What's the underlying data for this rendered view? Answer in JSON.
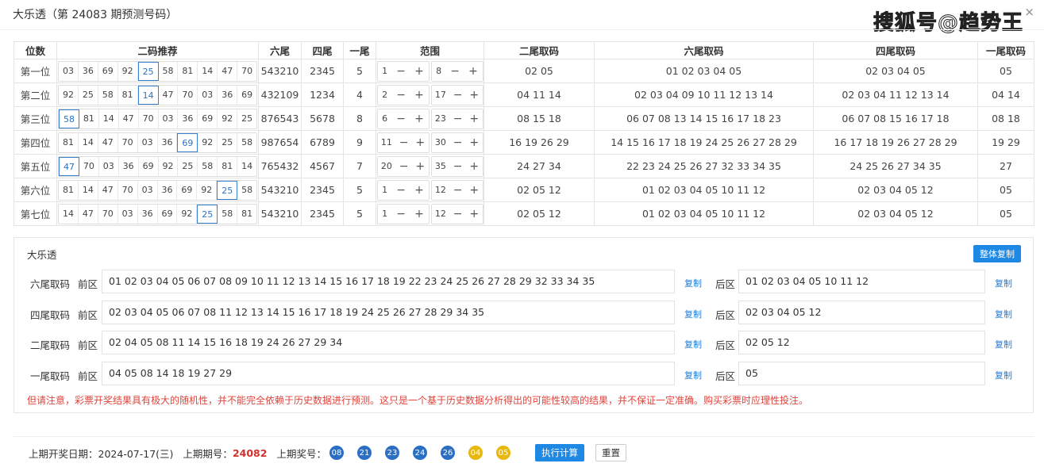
{
  "window": {
    "title": "大乐透（第 24083 期预测号码）",
    "watermark": "搜狐号@趋势王",
    "close": "×"
  },
  "table": {
    "headers": [
      "位数",
      "二码推荐",
      "六尾",
      "四尾",
      "一尾",
      "范围",
      "二尾取码",
      "六尾取码",
      "四尾取码",
      "一尾取码"
    ],
    "rows": [
      {
        "pos": "第一位",
        "codes": [
          "03",
          "36",
          "69",
          "92",
          "25",
          "58",
          "81",
          "14",
          "47",
          "70"
        ],
        "hl": 4,
        "six": "543210",
        "four": "2345",
        "one": "5",
        "min": "1",
        "max": "8",
        "t2": "02 05",
        "t6": "01 02 03 04 05",
        "t4": "02 03 04 05",
        "t1": "05"
      },
      {
        "pos": "第二位",
        "codes": [
          "92",
          "25",
          "58",
          "81",
          "14",
          "47",
          "70",
          "03",
          "36",
          "69"
        ],
        "hl": 4,
        "six": "432109",
        "four": "1234",
        "one": "4",
        "min": "2",
        "max": "17",
        "t2": "04 11 14",
        "t6": "02 03 04 09 10 11 12 13 14",
        "t4": "02 03 04 11 12 13 14",
        "t1": "04 14"
      },
      {
        "pos": "第三位",
        "codes": [
          "58",
          "81",
          "14",
          "47",
          "70",
          "03",
          "36",
          "69",
          "92",
          "25"
        ],
        "hl": 0,
        "six": "876543",
        "four": "5678",
        "one": "8",
        "min": "6",
        "max": "23",
        "t2": "08 15 18",
        "t6": "06 07 08 13 14 15 16 17 18 23",
        "t4": "06 07 08 15 16 17 18",
        "t1": "08 18"
      },
      {
        "pos": "第四位",
        "codes": [
          "81",
          "14",
          "47",
          "70",
          "03",
          "36",
          "69",
          "92",
          "25",
          "58"
        ],
        "hl": 6,
        "six": "987654",
        "four": "6789",
        "one": "9",
        "min": "11",
        "max": "30",
        "t2": "16 19 26 29",
        "t6": "14 15 16 17 18 19 24 25 26 27 28 29",
        "t4": "16 17 18 19 26 27 28 29",
        "t1": "19 29"
      },
      {
        "pos": "第五位",
        "codes": [
          "47",
          "70",
          "03",
          "36",
          "69",
          "92",
          "25",
          "58",
          "81",
          "14"
        ],
        "hl": 0,
        "six": "765432",
        "four": "4567",
        "one": "7",
        "min": "20",
        "max": "35",
        "t2": "24 27 34",
        "t6": "22 23 24 25 26 27 32 33 34 35",
        "t4": "24 25 26 27 34 35",
        "t1": "27"
      },
      {
        "pos": "第六位",
        "codes": [
          "81",
          "14",
          "47",
          "70",
          "03",
          "36",
          "69",
          "92",
          "25",
          "58"
        ],
        "hl": 8,
        "six": "543210",
        "four": "2345",
        "one": "5",
        "min": "1",
        "max": "12",
        "t2": "02 05 12",
        "t6": "01 02 03 04 05 10 11 12",
        "t4": "02 03 04 05 12",
        "t1": "05"
      },
      {
        "pos": "第七位",
        "codes": [
          "14",
          "47",
          "70",
          "03",
          "36",
          "69",
          "92",
          "25",
          "58",
          "81"
        ],
        "hl": 7,
        "six": "543210",
        "four": "2345",
        "one": "5",
        "min": "1",
        "max": "12",
        "t2": "02 05 12",
        "t6": "01 02 03 04 05 10 11 12",
        "t4": "02 03 04 05 12",
        "t1": "05"
      }
    ],
    "minus": "−",
    "plus": "+"
  },
  "summary": {
    "title": "大乐透",
    "copy_all": "整体复制",
    "front": "前区",
    "back": "后区",
    "copy": "复制",
    "rows": [
      {
        "label": "六尾取码",
        "front": "01 02 03 04 05 06 07 08 09 10 11 12 13 14 15 16 17 18 19 22 23 24 25 26 27 28 29 32 33 34 35",
        "back": "01 02 03 04 05 10 11 12"
      },
      {
        "label": "四尾取码",
        "front": "02 03 04 05 06 07 08 11 12 13 14 15 16 17 18 19 24 25 26 27 28 29 34 35",
        "back": "02 03 04 05 12"
      },
      {
        "label": "二尾取码",
        "front": "02 04 05 08 11 14 15 16 18 19 24 26 27 29 34",
        "back": "02 05 12"
      },
      {
        "label": "一尾取码",
        "front": "04 05 08 14 18 19 27 29",
        "back": "05"
      }
    ],
    "warning": "但请注意，彩票开奖结果具有极大的随机性，并不能完全依赖于历史数据进行预测。这只是一个基于历史数据分析得出的可能性较高的结果，并不保证一定准确。购买彩票时应理性投注。"
  },
  "footer": {
    "date_label": "上期开奖日期：",
    "date": "2024-07-17(三)",
    "issue_label": "上期期号：",
    "issue": "24082",
    "nums_label": "上期奖号：",
    "front_balls": [
      "08",
      "21",
      "23",
      "24",
      "26"
    ],
    "back_balls": [
      "04",
      "05"
    ],
    "colors": {
      "front": "#2a6fc4",
      "back": "#e8b80e",
      "accent": "#1e88e5",
      "issue": "#d0312d"
    },
    "run": "执行计算",
    "reset": "重置"
  }
}
